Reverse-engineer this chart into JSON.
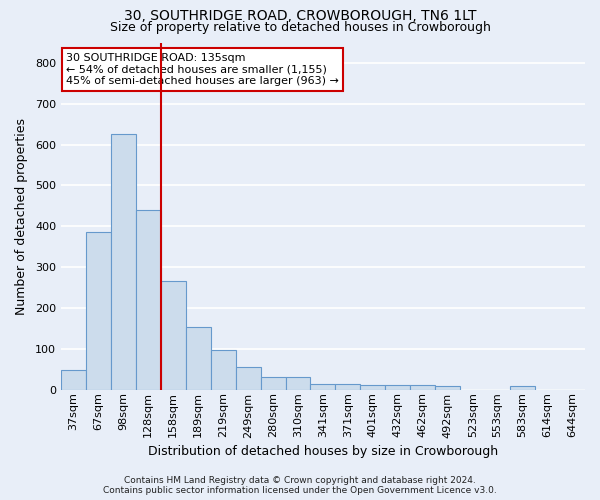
{
  "title": "30, SOUTHRIDGE ROAD, CROWBOROUGH, TN6 1LT",
  "subtitle": "Size of property relative to detached houses in Crowborough",
  "xlabel": "Distribution of detached houses by size in Crowborough",
  "ylabel": "Number of detached properties",
  "bar_labels": [
    "37sqm",
    "67sqm",
    "98sqm",
    "128sqm",
    "158sqm",
    "189sqm",
    "219sqm",
    "249sqm",
    "280sqm",
    "310sqm",
    "341sqm",
    "371sqm",
    "401sqm",
    "432sqm",
    "462sqm",
    "492sqm",
    "523sqm",
    "553sqm",
    "583sqm",
    "614sqm",
    "644sqm"
  ],
  "bar_values": [
    48,
    385,
    625,
    440,
    267,
    153,
    98,
    55,
    30,
    30,
    15,
    15,
    12,
    12,
    12,
    8,
    0,
    0,
    8,
    0,
    0
  ],
  "bar_color": "#ccdcec",
  "bar_edgecolor": "#6699cc",
  "bar_linewidth": 0.8,
  "red_line_x": 3.5,
  "red_line_color": "#cc0000",
  "annotation_text": "30 SOUTHRIDGE ROAD: 135sqm\n← 54% of detached houses are smaller (1,155)\n45% of semi-detached houses are larger (963) →",
  "annotation_box_color": "#ffffff",
  "annotation_box_edgecolor": "#cc0000",
  "ylim": [
    0,
    850
  ],
  "yticks": [
    0,
    100,
    200,
    300,
    400,
    500,
    600,
    700,
    800
  ],
  "background_color": "#e8eef8",
  "grid_color": "#ffffff",
  "title_fontsize": 10,
  "subtitle_fontsize": 9,
  "xlabel_fontsize": 9,
  "ylabel_fontsize": 9,
  "tick_fontsize": 8,
  "annotation_fontsize": 8,
  "footer": "Contains HM Land Registry data © Crown copyright and database right 2024.\nContains public sector information licensed under the Open Government Licence v3.0."
}
